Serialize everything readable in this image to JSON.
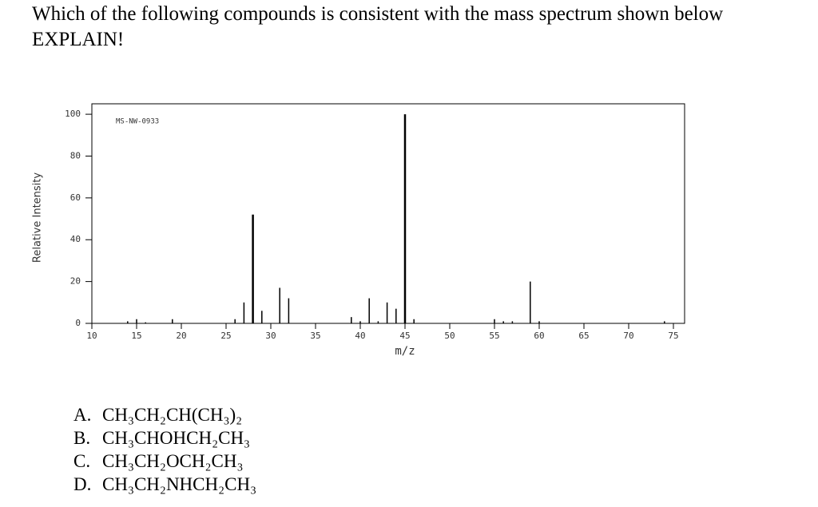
{
  "question": {
    "line1": "Which of the following compounds is consistent with the mass spectrum shown below",
    "line2": "EXPLAIN!"
  },
  "chart_data": {
    "type": "stem",
    "annotation": "MS-NW-0933",
    "ylabel": "Relative Intensity",
    "xlabel": "m/z",
    "x": [
      14,
      15,
      16,
      19,
      26,
      27,
      28,
      29,
      31,
      32,
      39,
      40,
      41,
      42,
      43,
      44,
      45,
      46,
      55,
      56,
      57,
      59,
      60,
      74
    ],
    "values": [
      1,
      2,
      0.5,
      2,
      2,
      10,
      52,
      6,
      17,
      12,
      3,
      1,
      12,
      1,
      10,
      7,
      100,
      2,
      2,
      1,
      1,
      20,
      1,
      1
    ],
    "color": "#000000",
    "xlim": [
      10,
      76.25
    ],
    "ylim": [
      0,
      105
    ],
    "xticks": [
      10,
      15,
      20,
      25,
      30,
      35,
      40,
      45,
      50,
      55,
      60,
      65,
      70,
      75
    ],
    "yticks": [
      0,
      20,
      40,
      60,
      80,
      100
    ]
  },
  "options": [
    {
      "letter": "A.",
      "formula": "CH₃CH₂CH(CH₃)₂"
    },
    {
      "letter": "B.",
      "formula": "CH₃CHOHCH₂CH₃"
    },
    {
      "letter": "C.",
      "formula": "CH₃CH₂OCH₂CH₃"
    },
    {
      "letter": "D.",
      "formula": "CH₃CH₂NHCH₂CH₃"
    }
  ]
}
